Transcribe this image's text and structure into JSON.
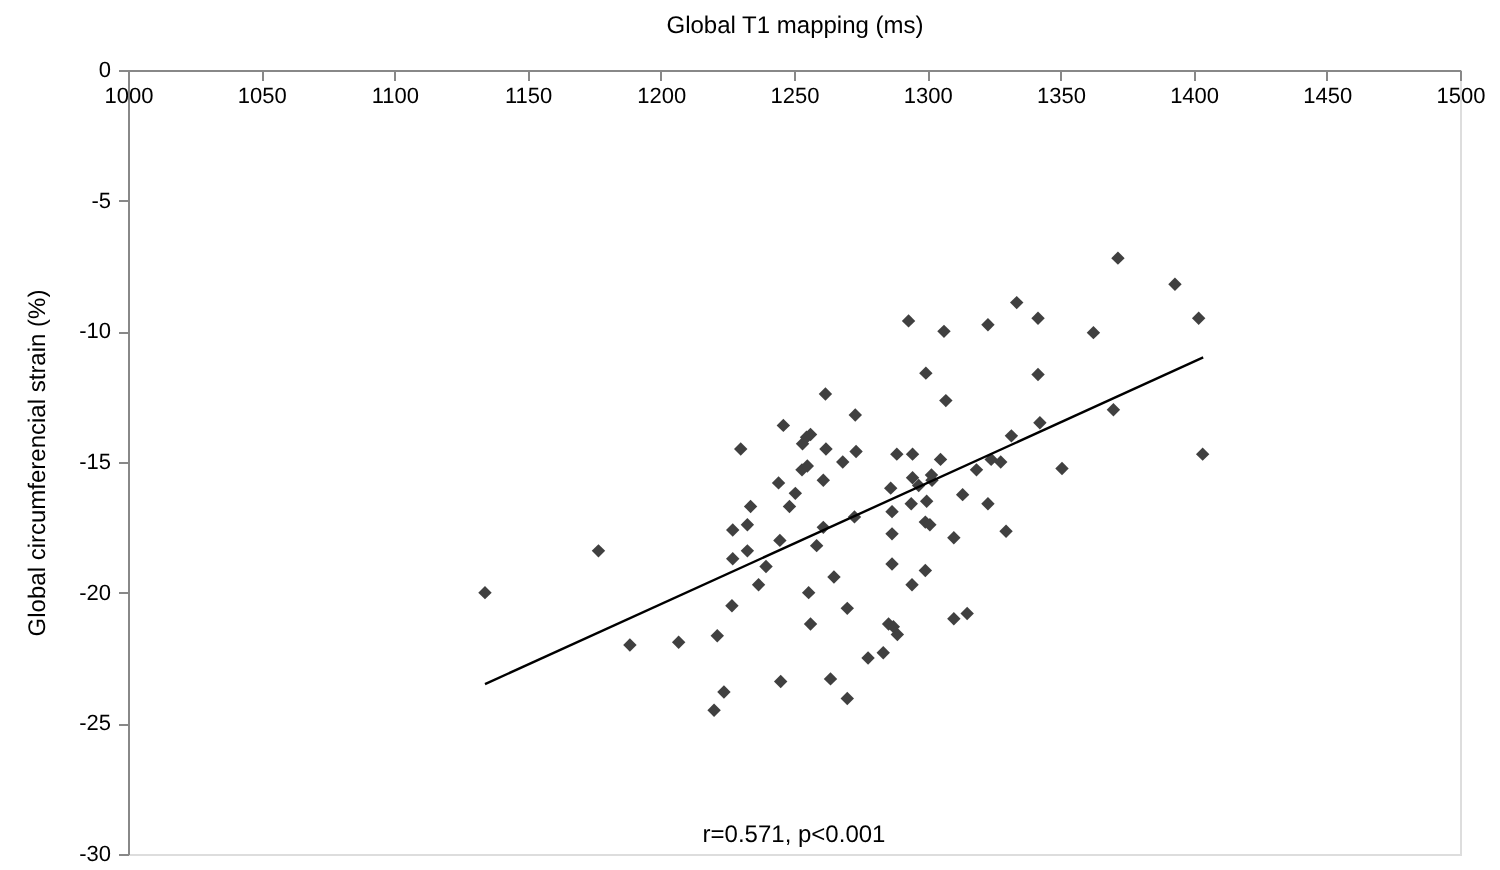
{
  "chart_data": {
    "type": "scatter",
    "xlabel": "Global T1 mapping (ms)",
    "ylabel": "Global circumferencial strain (%)",
    "xlim": [
      1000,
      1500
    ],
    "xticks": [
      1000,
      1050,
      1100,
      1150,
      1200,
      1250,
      1300,
      1350,
      1400,
      1450,
      1500
    ],
    "ylim": [
      -30,
      0
    ],
    "yticks": [
      -30,
      -25,
      -20,
      -15,
      -10,
      -5,
      0
    ],
    "grid": false,
    "annotations": [
      "r=0.571, p<0.001"
    ],
    "series": [
      {
        "color": "#404040",
        "marker": "diamond",
        "x": [
          1134,
          1176.6,
          1188.4,
          1206.7,
          1221.2,
          1220,
          1223.7,
          1226.7,
          1227,
          1227,
          1230,
          1232.5,
          1232.5,
          1233.7,
          1236.7,
          1239.5,
          1244.2,
          1244.7,
          1246,
          1245,
          1248.3,
          1250.5,
          1253,
          1253.2,
          1254.7,
          1256.2,
          1255,
          1255.5,
          1256.2,
          1258.5,
          1261,
          1261,
          1261.8,
          1262,
          1265,
          1263.7,
          1268.3,
          1270,
          1270,
          1273,
          1273.3,
          1272.7,
          1277.8,
          1283.5,
          1286.3,
          1286.8,
          1286.8,
          1286.8,
          1285.5,
          1287.3,
          1288.8,
          1288.6,
          1293,
          1294.5,
          1294.5,
          1294,
          1294.3,
          1296.8,
          1299.5,
          1299.8,
          1299.3,
          1301,
          1299.3,
          1301.6,
          1301.8,
          1305,
          1306.3,
          1307,
          1310,
          1310,
          1313.3,
          1315,
          1318.5,
          1322.8,
          1322.8,
          1324,
          1327.6,
          1329.6,
          1331.6,
          1333.6,
          1341.6,
          1341.6,
          1342.3,
          1350.6,
          1362.4,
          1369.9,
          1371.6,
          1393,
          1401.9,
          1403.4
        ],
        "values": [
          -20.0,
          -18.4,
          -22.0,
          -21.9,
          -21.65,
          -24.5,
          -23.8,
          -20.5,
          -18.7,
          -17.6,
          -14.5,
          -17.4,
          -18.4,
          -16.7,
          -19.7,
          -19.0,
          -15.8,
          -18.0,
          -13.6,
          -23.4,
          -16.7,
          -16.2,
          -15.3,
          -14.3,
          -14.05,
          -13.95,
          -15.15,
          -20.0,
          -21.2,
          -18.2,
          -17.5,
          -15.7,
          -12.4,
          -14.5,
          -19.4,
          -23.3,
          -15.0,
          -20.6,
          -24.05,
          -13.2,
          -14.6,
          -17.1,
          -22.5,
          -22.3,
          -16.0,
          -16.9,
          -17.75,
          -18.9,
          -21.2,
          -21.3,
          -21.6,
          -14.7,
          -9.6,
          -14.7,
          -15.6,
          -16.6,
          -19.7,
          -15.9,
          -11.6,
          -16.5,
          -17.3,
          -17.4,
          -19.15,
          -15.5,
          -15.7,
          -14.9,
          -10.0,
          -12.65,
          -17.9,
          -21.0,
          -16.25,
          -20.8,
          -15.3,
          -9.75,
          -16.6,
          -14.9,
          -15.0,
          -17.65,
          -14.0,
          -8.9,
          -9.5,
          -11.65,
          -13.5,
          -15.25,
          -10.05,
          -13.0,
          -7.2,
          -8.2,
          -9.5,
          -14.7
        ]
      },
      {
        "type": "line",
        "color": "#000000",
        "line_style": "solid",
        "marker": "none",
        "x": [
          1134,
          1403.6
        ],
        "values": [
          -23.5,
          -11.0
        ]
      }
    ]
  }
}
